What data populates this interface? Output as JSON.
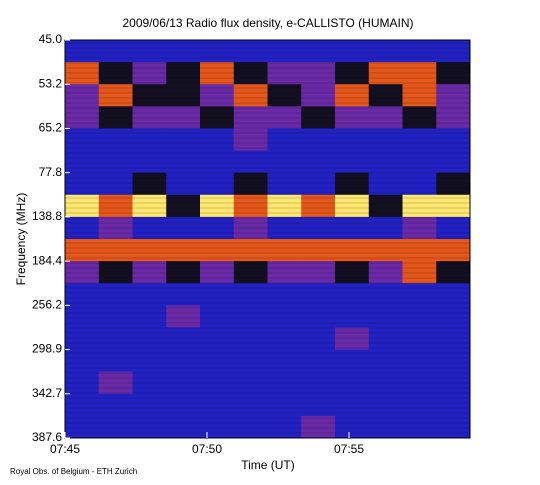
{
  "chart_data": {
    "type": "heatmap",
    "title": "2009/06/13  Radio flux density, e-CALLISTO (HUMAIN)",
    "x_label": "Time (UT)",
    "y_label": "Frequency (MHz)",
    "footer": "Royal Obs. of Belgium - ETH Zurich",
    "xlim": [
      465,
      479.26
    ],
    "xticks": [
      {
        "value": 465,
        "label": "07:45"
      },
      {
        "value": 470,
        "label": "07:50"
      },
      {
        "value": 475,
        "label": "07:55"
      }
    ],
    "y_tick_labels": [
      "45.0",
      "53.2",
      "65.2",
      "77.8",
      "138.8",
      "184.4",
      "256.2",
      "298.9",
      "342.7",
      "387.6"
    ],
    "colormap": [
      "#121020",
      "#2222c4",
      "#6a2aa8",
      "#e4561a",
      "#ffe870"
    ],
    "values": [
      [
        1,
        1,
        1,
        1,
        1,
        1,
        1,
        1,
        1,
        1,
        1,
        1
      ],
      [
        3,
        0,
        2,
        0,
        3,
        0,
        2,
        2,
        0,
        3,
        3,
        0
      ],
      [
        2,
        3,
        0,
        0,
        2,
        3,
        0,
        2,
        3,
        0,
        3,
        2
      ],
      [
        2,
        0,
        2,
        2,
        0,
        2,
        2,
        0,
        2,
        2,
        0,
        2
      ],
      [
        1,
        1,
        1,
        1,
        1,
        2,
        1,
        1,
        1,
        1,
        1,
        1
      ],
      [
        1,
        1,
        1,
        1,
        1,
        1,
        1,
        1,
        1,
        1,
        1,
        1
      ],
      [
        1,
        1,
        0,
        1,
        1,
        0,
        1,
        1,
        0,
        1,
        1,
        0
      ],
      [
        4,
        3,
        4,
        0,
        4,
        3,
        4,
        3,
        4,
        0,
        4,
        4
      ],
      [
        1,
        2,
        1,
        1,
        1,
        2,
        1,
        1,
        1,
        1,
        2,
        1
      ],
      [
        3,
        3,
        3,
        3,
        3,
        3,
        3,
        3,
        3,
        3,
        3,
        3
      ],
      [
        2,
        0,
        2,
        0,
        2,
        0,
        2,
        2,
        0,
        2,
        3,
        0
      ],
      [
        1,
        1,
        1,
        1,
        1,
        1,
        1,
        1,
        1,
        1,
        1,
        1
      ],
      [
        1,
        1,
        1,
        2,
        1,
        1,
        1,
        1,
        1,
        1,
        1,
        1
      ],
      [
        1,
        1,
        1,
        1,
        1,
        1,
        1,
        1,
        2,
        1,
        1,
        1
      ],
      [
        1,
        1,
        1,
        1,
        1,
        1,
        1,
        1,
        1,
        1,
        1,
        1
      ],
      [
        1,
        2,
        1,
        1,
        1,
        1,
        1,
        1,
        1,
        1,
        1,
        1
      ],
      [
        1,
        1,
        1,
        1,
        1,
        1,
        1,
        1,
        1,
        1,
        1,
        1
      ],
      [
        1,
        1,
        1,
        1,
        1,
        1,
        1,
        2,
        1,
        1,
        1,
        1
      ]
    ]
  }
}
